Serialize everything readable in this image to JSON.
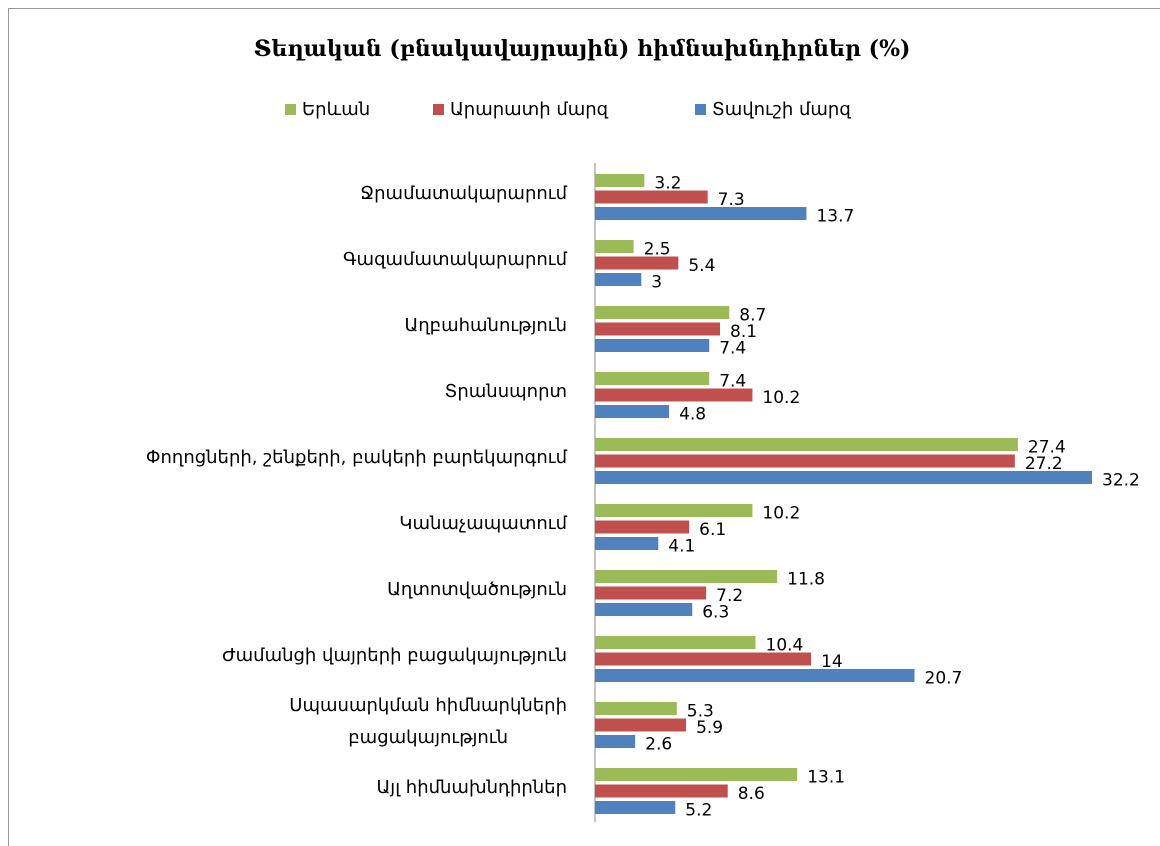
{
  "chart_data": {
    "type": "hbar",
    "title": "Տեղական (բնակավայրային) հիմնախնդիրներ (%)",
    "categories": [
      "Ջրամատակարարում",
      "Գազամատակարարում",
      "Աղբահանություն",
      "Տրանսպորտ",
      "Փողոցների, շենքերի, բակերի բարեկարգում",
      "Կանաչապատում",
      "Աղտոտվածություն",
      "Ժամանցի վայրերի բացակայություն",
      "Սպասարկման հիմնարկների\nբացակայություն",
      "Այլ հիմնախնդիրներ"
    ],
    "series": [
      {
        "name": "Երևան",
        "color": "#9bbb59",
        "values": [
          3.2,
          2.5,
          8.7,
          7.4,
          27.4,
          10.2,
          11.8,
          10.4,
          5.3,
          13.1
        ]
      },
      {
        "name": "Արարատի մարզ",
        "color": "#c0504d",
        "values": [
          7.3,
          5.4,
          8.1,
          10.2,
          27.2,
          6.1,
          7.2,
          14,
          5.9,
          8.6
        ]
      },
      {
        "name": "Տավուշի մարզ",
        "color": "#4f81bd",
        "values": [
          13.7,
          3,
          7.4,
          4.8,
          32.2,
          4.1,
          6.3,
          20.7,
          2.6,
          5.2
        ]
      }
    ],
    "xlim": [
      0,
      32.2
    ],
    "legend": "top"
  }
}
